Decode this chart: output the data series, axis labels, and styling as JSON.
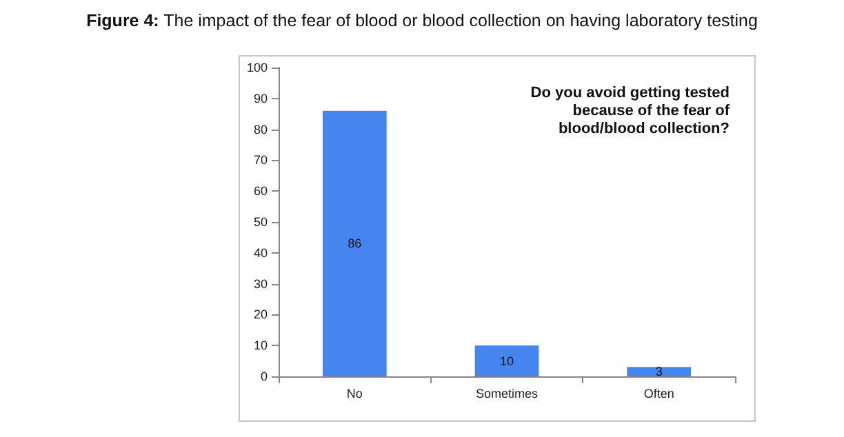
{
  "chart_data": {
    "type": "bar",
    "title": "Figure 4: The impact of the fear of blood or blood collection on having laboratory testing",
    "categories": [
      "No",
      "Sometimes",
      "Often"
    ],
    "values": [
      86,
      10,
      3
    ],
    "color": "#4485f0",
    "ylim": [
      0,
      100
    ],
    "yticks": [
      0,
      10,
      20,
      30,
      40,
      50,
      60,
      70,
      80,
      90,
      100
    ],
    "grid": false,
    "data_labels": true,
    "annotations": [
      "Do you avoid getting tested\nbecause of the fear of\nblood/blood collection?"
    ]
  }
}
